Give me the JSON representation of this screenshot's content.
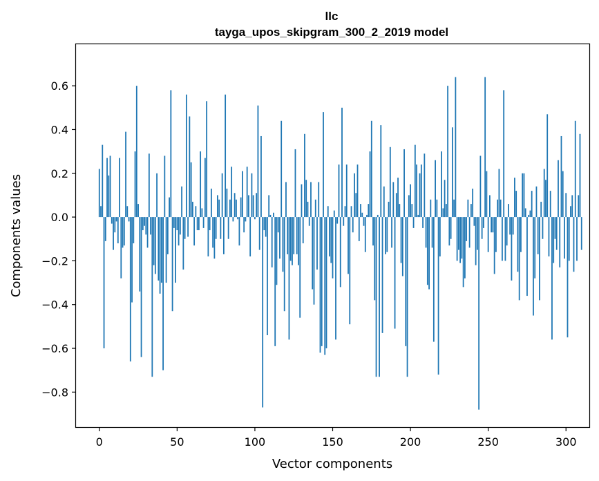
{
  "chart_data": {
    "type": "bar",
    "title": "llc",
    "subtitle": "tayga_upos_skipgram_300_2_2019 model",
    "xlabel": "Vector components",
    "ylabel": "Components values",
    "xlim": [
      -15,
      315
    ],
    "ylim": [
      -0.96,
      0.79
    ],
    "xticks": [
      0,
      50,
      100,
      150,
      200,
      250,
      300
    ],
    "xtick_labels": [
      "0",
      "50",
      "100",
      "150",
      "200",
      "250",
      "300"
    ],
    "yticks": [
      -0.8,
      -0.6,
      -0.4,
      -0.2,
      0.0,
      0.2,
      0.4,
      0.6
    ],
    "ytick_labels": [
      "−0.8",
      "−0.6",
      "−0.4",
      "−0.2",
      "0.0",
      "0.2",
      "0.4",
      "0.6"
    ],
    "bar_color": "#1f77b4",
    "series": [
      {
        "name": "llc",
        "values": [
          0.22,
          0.05,
          0.33,
          -0.6,
          -0.11,
          0.27,
          0.19,
          0.28,
          -0.03,
          -0.15,
          -0.07,
          -0.02,
          -0.12,
          0.27,
          -0.28,
          -0.14,
          -0.13,
          0.39,
          0.05,
          -0.02,
          -0.66,
          -0.39,
          -0.12,
          0.3,
          0.6,
          0.06,
          -0.34,
          -0.64,
          -0.06,
          -0.04,
          -0.08,
          -0.14,
          0.29,
          -0.08,
          -0.73,
          -0.22,
          -0.26,
          0.2,
          -0.29,
          -0.35,
          -0.3,
          -0.7,
          0.28,
          -0.3,
          -0.17,
          0.09,
          0.58,
          -0.43,
          -0.05,
          -0.3,
          -0.06,
          -0.13,
          -0.08,
          0.14,
          -0.24,
          -0.1,
          0.56,
          -0.09,
          0.46,
          0.25,
          0.07,
          -0.13,
          0.05,
          -0.06,
          -0.06,
          0.3,
          0.04,
          -0.05,
          0.27,
          0.53,
          -0.18,
          -0.06,
          0.13,
          -0.14,
          -0.19,
          -0.1,
          0.1,
          0.08,
          -0.1,
          0.2,
          -0.17,
          0.56,
          0.13,
          -0.1,
          0.08,
          0.23,
          -0.02,
          0.11,
          0.08,
          -0.01,
          -0.13,
          0.09,
          0.21,
          -0.07,
          -0.02,
          0.23,
          0.1,
          -0.18,
          0.2,
          0.1,
          -0.01,
          0.11,
          0.51,
          -0.15,
          0.37,
          -0.87,
          -0.06,
          -0.09,
          -0.54,
          0.1,
          0.01,
          -0.23,
          0.02,
          -0.59,
          -0.31,
          -0.07,
          -0.19,
          0.44,
          -0.25,
          -0.43,
          0.16,
          -0.17,
          -0.56,
          -0.2,
          -0.22,
          -0.17,
          0.31,
          -0.17,
          -0.22,
          -0.46,
          0.15,
          -0.12,
          0.38,
          0.17,
          0.07,
          -0.04,
          0.16,
          -0.33,
          -0.4,
          0.08,
          -0.24,
          0.16,
          -0.62,
          -0.59,
          0.48,
          -0.63,
          -0.6,
          0.05,
          -0.18,
          -0.21,
          -0.28,
          0.03,
          -0.56,
          -0.03,
          0.24,
          -0.32,
          0.5,
          -0.04,
          0.05,
          0.24,
          -0.26,
          -0.49,
          0.05,
          -0.07,
          0.2,
          0.11,
          0.24,
          -0.11,
          0.06,
          0.02,
          -0.04,
          -0.16,
          0.01,
          0.06,
          0.3,
          0.44,
          -0.13,
          -0.38,
          -0.73,
          0.01,
          -0.73,
          0.42,
          -0.53,
          0.14,
          -0.17,
          -0.16,
          0.07,
          0.32,
          -0.14,
          0.16,
          -0.51,
          0.11,
          0.18,
          0.06,
          -0.21,
          -0.27,
          0.31,
          -0.59,
          -0.73,
          0.1,
          0.15,
          0.06,
          -0.05,
          0.33,
          0.24,
          0.01,
          0.2,
          0.24,
          -0.05,
          0.29,
          -0.14,
          -0.31,
          -0.33,
          0.08,
          -0.14,
          -0.57,
          0.26,
          0.08,
          -0.72,
          -0.18,
          0.3,
          0.04,
          0.17,
          0.06,
          0.6,
          -0.13,
          -0.1,
          0.41,
          0.08,
          0.64,
          -0.2,
          -0.15,
          -0.21,
          -0.19,
          -0.32,
          -0.28,
          -0.11,
          0.08,
          -0.14,
          0.06,
          0.13,
          -0.04,
          -0.22,
          -0.15,
          -0.88,
          0.28,
          -0.1,
          -0.05,
          0.64,
          0.21,
          -0.16,
          0.1,
          -0.07,
          -0.07,
          -0.26,
          -0.16,
          0.08,
          0.22,
          0.08,
          -0.2,
          0.58,
          -0.2,
          -0.13,
          0.06,
          -0.08,
          -0.29,
          -0.08,
          0.18,
          0.12,
          -0.25,
          -0.38,
          -0.16,
          0.2,
          0.2,
          0.04,
          -0.36,
          0.01,
          0.03,
          0.12,
          -0.45,
          -0.28,
          0.14,
          -0.17,
          -0.38,
          0.07,
          -0.1,
          0.22,
          0.17,
          0.47,
          -0.18,
          0.12,
          -0.56,
          -0.21,
          -0.1,
          -0.15,
          0.26,
          -0.23,
          0.37,
          0.21,
          -0.19,
          0.11,
          -0.55,
          -0.2,
          0.05,
          0.1,
          -0.25,
          0.44,
          -0.2,
          0.1,
          0.38,
          -0.15
        ]
      }
    ]
  }
}
